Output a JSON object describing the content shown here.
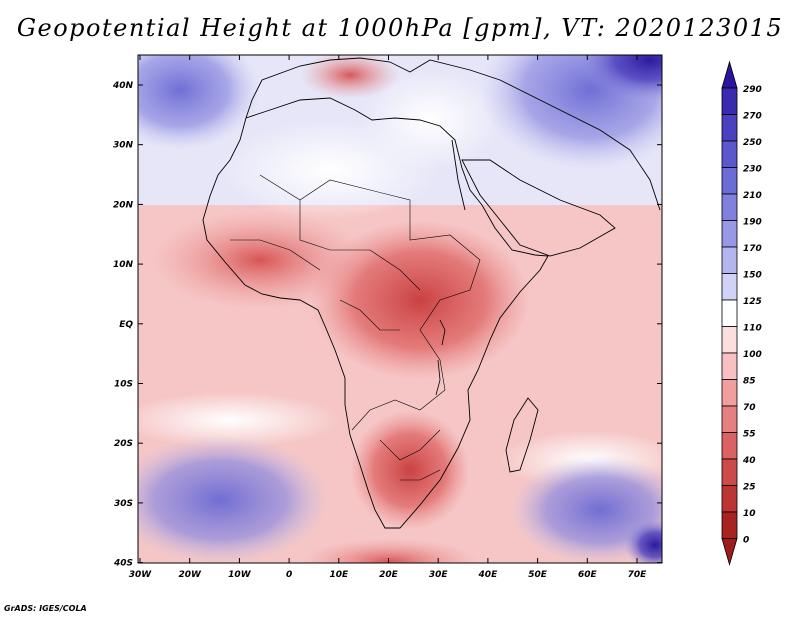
{
  "title": "Geopotential Height at 1000hPa [gpm], VT: 2020123015",
  "credit": "GrADS: IGES/COLA",
  "colors": {
    "deep_red": "#b2182b",
    "red": "#d6604d",
    "pink": "#f4a582",
    "light_pink": "#fddbc7",
    "white": "#ffffff",
    "light_blue": "#d1d5f5",
    "blue": "#8c8de0",
    "deep_blue": "#2a1a9c"
  },
  "map": {
    "lat_labels": [
      "40N",
      "30N",
      "20N",
      "10N",
      "EQ",
      "10S",
      "20S",
      "30S",
      "40S"
    ],
    "lon_labels": [
      "30W",
      "20W",
      "10W",
      "0",
      "10E",
      "20E",
      "30E",
      "40E",
      "50E",
      "60E",
      "70E"
    ]
  },
  "colorbar": {
    "labels": [
      "290",
      "270",
      "250",
      "230",
      "210",
      "190",
      "170",
      "150",
      "125",
      "110",
      "100",
      "85",
      "70",
      "55",
      "40",
      "25",
      "10",
      "0"
    ],
    "colors": [
      "#2c14a0",
      "#3a2ab0",
      "#4a40c0",
      "#5a58cc",
      "#6c6cd6",
      "#8080de",
      "#9898e6",
      "#b4b4ef",
      "#d2d2f6",
      "#ffffff",
      "#fcdede",
      "#f8c0c0",
      "#f09e9e",
      "#e68080",
      "#da6262",
      "#cc4a4a",
      "#bc3434",
      "#a82222"
    ]
  }
}
